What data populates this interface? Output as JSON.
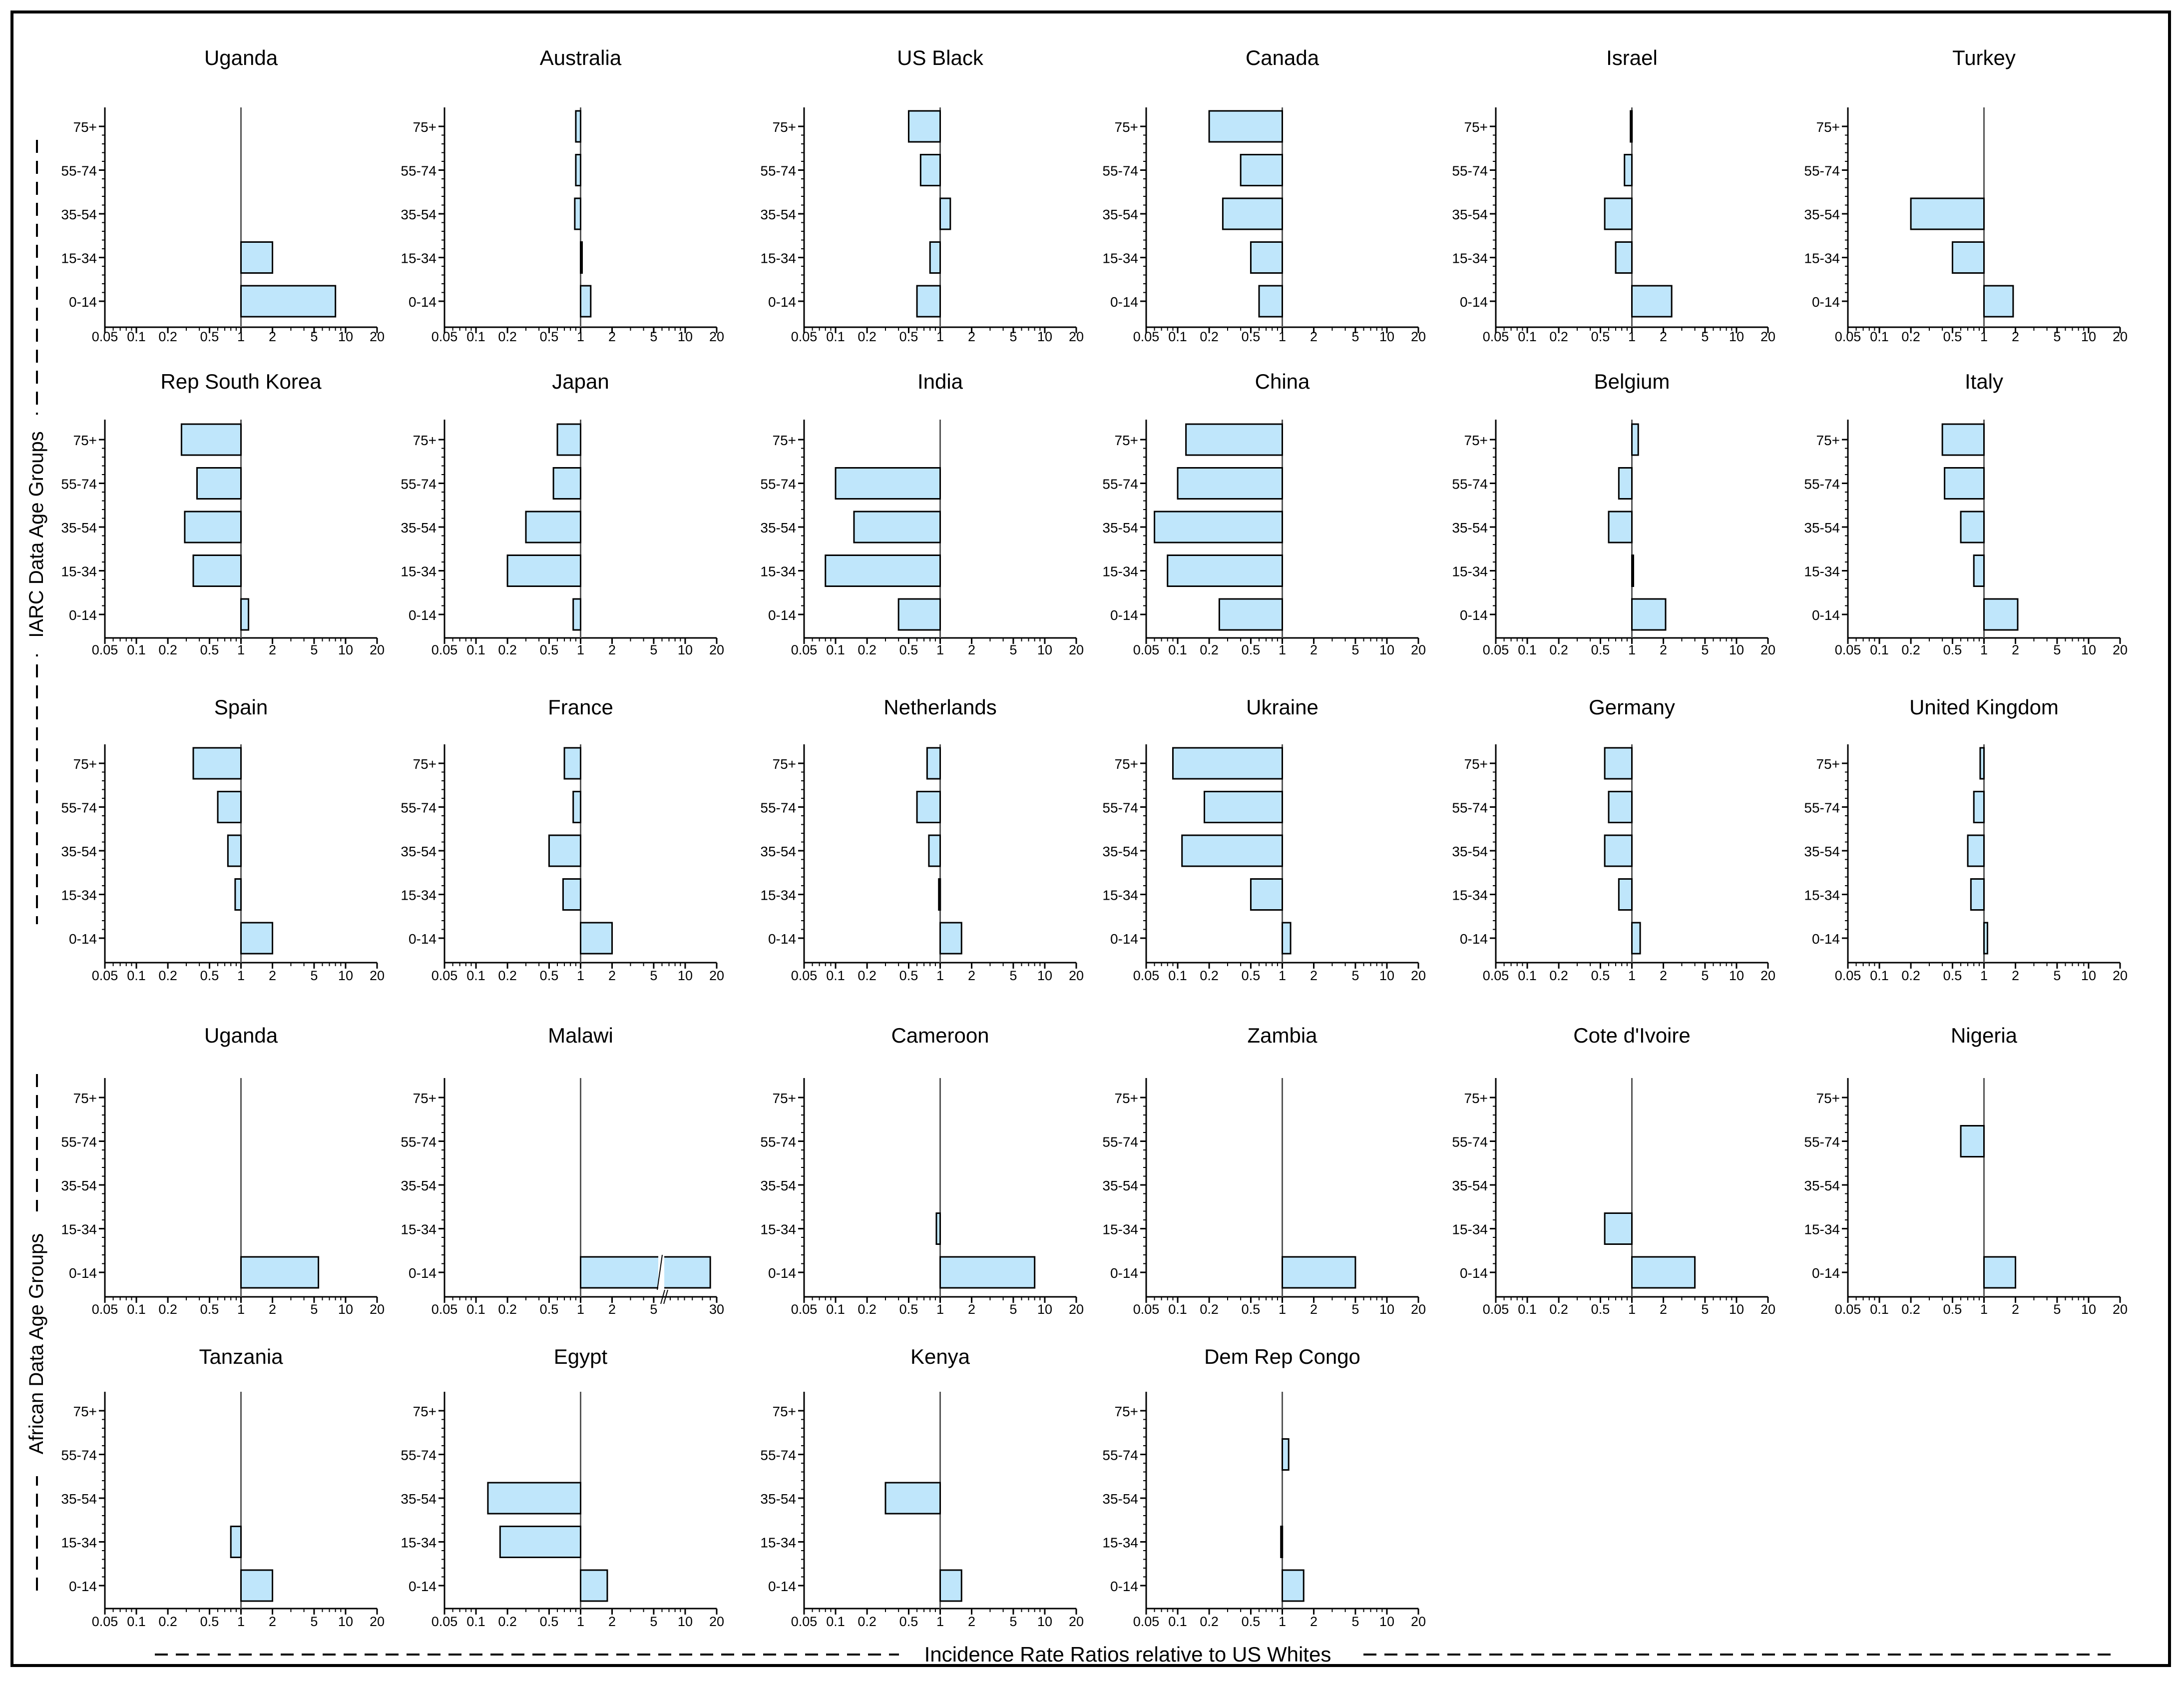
{
  "figure": {
    "x_label": "Incidence Rate Ratios relative to US Whites",
    "iarc_label": "IARC Data Age Groups",
    "african_label": "African Data Age Groups",
    "age_groups": [
      "75+",
      "55-74",
      "35-54",
      "15-34",
      "0-14"
    ],
    "ticks": [
      0.05,
      0.1,
      0.2,
      0.5,
      1,
      2,
      5,
      10,
      20
    ],
    "tick_labels": [
      "0.05",
      "0.1",
      "0.2",
      "0.5",
      "1",
      "2",
      "5",
      "10",
      "20"
    ],
    "malawi_ticks": [
      0.05,
      0.1,
      0.2,
      0.5,
      1,
      2,
      5,
      30
    ],
    "malawi_tick_labels": [
      "0.05",
      "0.1",
      "0.2",
      "0.5",
      "1",
      "2",
      "5",
      "30"
    ]
  },
  "chart_data": [
    {
      "type": "bar",
      "title": "Uganda",
      "group": "IARC",
      "categories": [
        "75+",
        "55-74",
        "35-54",
        "15-34",
        "0-14"
      ],
      "values": [
        null,
        null,
        null,
        2.0,
        8.0
      ],
      "xscale": "log",
      "xlim": [
        0.05,
        20
      ],
      "ylabel": "IARC Data Age Groups",
      "xlabel": "Incidence Rate Ratios relative to US Whites"
    },
    {
      "type": "bar",
      "title": "Australia",
      "group": "IARC",
      "categories": [
        "75+",
        "55-74",
        "35-54",
        "15-34",
        "0-14"
      ],
      "values": [
        0.9,
        0.9,
        0.88,
        1.03,
        1.25
      ],
      "xscale": "log",
      "xlim": [
        0.05,
        20
      ]
    },
    {
      "type": "bar",
      "title": "US Black",
      "group": "IARC",
      "categories": [
        "75+",
        "55-74",
        "35-54",
        "15-34",
        "0-14"
      ],
      "values": [
        0.5,
        0.65,
        1.25,
        0.8,
        0.6
      ],
      "xscale": "log",
      "xlim": [
        0.05,
        20
      ]
    },
    {
      "type": "bar",
      "title": "Canada",
      "group": "IARC",
      "categories": [
        "75+",
        "55-74",
        "35-54",
        "15-34",
        "0-14"
      ],
      "values": [
        0.2,
        0.4,
        0.27,
        0.5,
        0.6
      ],
      "xscale": "log",
      "xlim": [
        0.05,
        20
      ]
    },
    {
      "type": "bar",
      "title": "Israel",
      "group": "IARC",
      "categories": [
        "75+",
        "55-74",
        "35-54",
        "15-34",
        "0-14"
      ],
      "values": [
        0.97,
        0.85,
        0.55,
        0.7,
        2.4
      ],
      "xscale": "log",
      "xlim": [
        0.05,
        20
      ]
    },
    {
      "type": "bar",
      "title": "Turkey",
      "group": "IARC",
      "categories": [
        "75+",
        "55-74",
        "35-54",
        "15-34",
        "0-14"
      ],
      "values": [
        null,
        null,
        0.2,
        0.5,
        1.9
      ],
      "xscale": "log",
      "xlim": [
        0.05,
        20
      ]
    },
    {
      "type": "bar",
      "title": "Rep South Korea",
      "group": "IARC",
      "categories": [
        "75+",
        "55-74",
        "35-54",
        "15-34",
        "0-14"
      ],
      "values": [
        0.27,
        0.38,
        0.29,
        0.35,
        1.18
      ],
      "xscale": "log",
      "xlim": [
        0.05,
        20
      ]
    },
    {
      "type": "bar",
      "title": "Japan",
      "group": "IARC",
      "categories": [
        "75+",
        "55-74",
        "35-54",
        "15-34",
        "0-14"
      ],
      "values": [
        0.6,
        0.55,
        0.3,
        0.2,
        0.85
      ],
      "xscale": "log",
      "xlim": [
        0.05,
        20
      ]
    },
    {
      "type": "bar",
      "title": "India",
      "group": "IARC",
      "categories": [
        "75+",
        "55-74",
        "35-54",
        "15-34",
        "0-14"
      ],
      "values": [
        null,
        0.1,
        0.15,
        0.08,
        0.4
      ],
      "xscale": "log",
      "xlim": [
        0.05,
        20
      ]
    },
    {
      "type": "bar",
      "title": "China",
      "group": "IARC",
      "categories": [
        "75+",
        "55-74",
        "35-54",
        "15-34",
        "0-14"
      ],
      "values": [
        0.12,
        0.1,
        0.06,
        0.08,
        0.25
      ],
      "xscale": "log",
      "xlim": [
        0.05,
        20
      ]
    },
    {
      "type": "bar",
      "title": "Belgium",
      "group": "IARC",
      "categories": [
        "75+",
        "55-74",
        "35-54",
        "15-34",
        "0-14"
      ],
      "values": [
        1.15,
        0.75,
        0.6,
        1.02,
        2.1
      ],
      "xscale": "log",
      "xlim": [
        0.05,
        20
      ]
    },
    {
      "type": "bar",
      "title": "Italy",
      "group": "IARC",
      "categories": [
        "75+",
        "55-74",
        "35-54",
        "15-34",
        "0-14"
      ],
      "values": [
        0.4,
        0.42,
        0.6,
        0.8,
        2.1
      ],
      "xscale": "log",
      "xlim": [
        0.05,
        20
      ]
    },
    {
      "type": "bar",
      "title": "Spain",
      "group": "IARC",
      "categories": [
        "75+",
        "55-74",
        "35-54",
        "15-34",
        "0-14"
      ],
      "values": [
        0.35,
        0.6,
        0.75,
        0.88,
        2.0
      ],
      "xscale": "log",
      "xlim": [
        0.05,
        20
      ]
    },
    {
      "type": "bar",
      "title": "France",
      "group": "IARC",
      "categories": [
        "75+",
        "55-74",
        "35-54",
        "15-34",
        "0-14"
      ],
      "values": [
        0.7,
        0.85,
        0.5,
        0.68,
        2.0
      ],
      "xscale": "log",
      "xlim": [
        0.05,
        20
      ]
    },
    {
      "type": "bar",
      "title": "Netherlands",
      "group": "IARC",
      "categories": [
        "75+",
        "55-74",
        "35-54",
        "15-34",
        "0-14"
      ],
      "values": [
        0.75,
        0.6,
        0.78,
        0.97,
        1.6
      ],
      "xscale": "log",
      "xlim": [
        0.05,
        20
      ]
    },
    {
      "type": "bar",
      "title": "Ukraine",
      "group": "IARC",
      "categories": [
        "75+",
        "55-74",
        "35-54",
        "15-34",
        "0-14"
      ],
      "values": [
        0.09,
        0.18,
        0.11,
        0.5,
        1.2
      ],
      "xscale": "log",
      "xlim": [
        0.05,
        20
      ]
    },
    {
      "type": "bar",
      "title": "Germany",
      "group": "IARC",
      "categories": [
        "75+",
        "55-74",
        "35-54",
        "15-34",
        "0-14"
      ],
      "values": [
        0.55,
        0.6,
        0.55,
        0.75,
        1.2
      ],
      "xscale": "log",
      "xlim": [
        0.05,
        20
      ]
    },
    {
      "type": "bar",
      "title": "United Kingdom",
      "group": "IARC",
      "categories": [
        "75+",
        "55-74",
        "35-54",
        "15-34",
        "0-14"
      ],
      "values": [
        0.92,
        0.8,
        0.7,
        0.75,
        1.08
      ],
      "xscale": "log",
      "xlim": [
        0.05,
        20
      ]
    },
    {
      "type": "bar",
      "title": "Uganda",
      "group": "African",
      "categories": [
        "75+",
        "55-74",
        "35-54",
        "15-34",
        "0-14"
      ],
      "values": [
        null,
        null,
        null,
        null,
        5.5
      ],
      "xscale": "log",
      "xlim": [
        0.05,
        20
      ],
      "ylabel": "African Data Age Groups"
    },
    {
      "type": "bar",
      "title": "Malawi",
      "group": "African",
      "categories": [
        "75+",
        "55-74",
        "35-54",
        "15-34",
        "0-14"
      ],
      "values": [
        null,
        null,
        null,
        null,
        25
      ],
      "xscale": "log",
      "xlim": [
        0.05,
        30
      ],
      "axis_break": true
    },
    {
      "type": "bar",
      "title": "Cameroon",
      "group": "African",
      "categories": [
        "75+",
        "55-74",
        "35-54",
        "15-34",
        "0-14"
      ],
      "values": [
        null,
        null,
        null,
        0.92,
        8.0
      ],
      "xscale": "log",
      "xlim": [
        0.05,
        20
      ]
    },
    {
      "type": "bar",
      "title": "Zambia",
      "group": "African",
      "categories": [
        "75+",
        "55-74",
        "35-54",
        "15-34",
        "0-14"
      ],
      "values": [
        null,
        null,
        null,
        null,
        5.0
      ],
      "xscale": "log",
      "xlim": [
        0.05,
        20
      ]
    },
    {
      "type": "bar",
      "title": "Cote d'Ivoire",
      "group": "African",
      "categories": [
        "75+",
        "55-74",
        "35-54",
        "15-34",
        "0-14"
      ],
      "values": [
        null,
        null,
        null,
        0.55,
        4.0
      ],
      "xscale": "log",
      "xlim": [
        0.05,
        20
      ]
    },
    {
      "type": "bar",
      "title": "Nigeria",
      "group": "African",
      "categories": [
        "75+",
        "55-74",
        "35-54",
        "15-34",
        "0-14"
      ],
      "values": [
        null,
        0.6,
        null,
        null,
        2.0
      ],
      "xscale": "log",
      "xlim": [
        0.05,
        20
      ]
    },
    {
      "type": "bar",
      "title": "Tanzania",
      "group": "African",
      "categories": [
        "75+",
        "55-74",
        "35-54",
        "15-34",
        "0-14"
      ],
      "values": [
        null,
        null,
        null,
        0.8,
        2.0
      ],
      "xscale": "log",
      "xlim": [
        0.05,
        20
      ]
    },
    {
      "type": "bar",
      "title": "Egypt",
      "group": "African",
      "categories": [
        "75+",
        "55-74",
        "35-54",
        "15-34",
        "0-14"
      ],
      "values": [
        null,
        null,
        0.13,
        0.17,
        1.8
      ],
      "xscale": "log",
      "xlim": [
        0.05,
        20
      ]
    },
    {
      "type": "bar",
      "title": "Kenya",
      "group": "African",
      "categories": [
        "75+",
        "55-74",
        "35-54",
        "15-34",
        "0-14"
      ],
      "values": [
        null,
        null,
        0.3,
        null,
        1.6
      ],
      "xscale": "log",
      "xlim": [
        0.05,
        20
      ]
    },
    {
      "type": "bar",
      "title": "Dem Rep Congo",
      "group": "African",
      "categories": [
        "75+",
        "55-74",
        "35-54",
        "15-34",
        "0-14"
      ],
      "values": [
        null,
        1.15,
        null,
        0.97,
        1.6
      ],
      "xscale": "log",
      "xlim": [
        0.05,
        20
      ]
    }
  ]
}
